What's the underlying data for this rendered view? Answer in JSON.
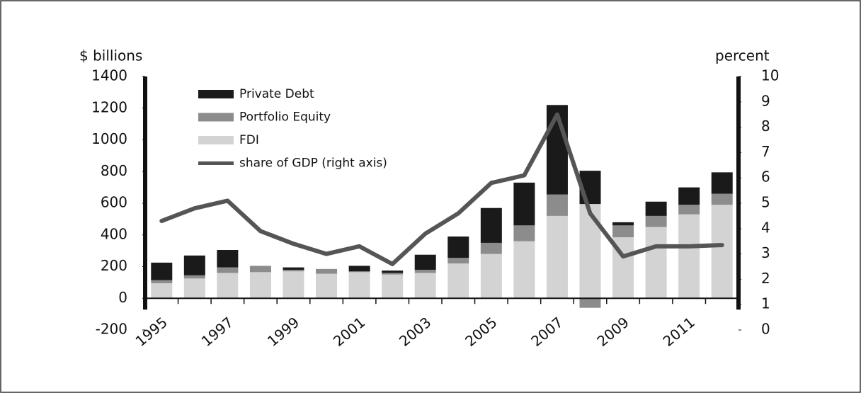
{
  "chart_data": {
    "type": "bar",
    "stacked": true,
    "ylabel": "$ billions",
    "y2label": "percent",
    "categories": [
      "1995",
      null,
      "1997",
      null,
      "1999",
      null,
      "2001",
      null,
      "2003",
      null,
      "2005",
      null,
      "2007",
      null,
      "2009",
      null,
      "2011",
      null
    ],
    "series": [
      {
        "name": "Private Debt",
        "color": "#1a1a1a",
        "values": [
          110,
          125,
          110,
          0,
          15,
          0,
          35,
          15,
          95,
          135,
          220,
          270,
          565,
          210,
          20,
          90,
          110,
          135
        ]
      },
      {
        "name": "Portfolio Equity",
        "color": "#8c8c8c",
        "values": [
          20,
          20,
          35,
          40,
          10,
          30,
          5,
          10,
          20,
          35,
          70,
          100,
          135,
          -60,
          75,
          70,
          60,
          70
        ]
      },
      {
        "name": "FDI",
        "color": "#d3d3d3",
        "values": [
          95,
          125,
          160,
          165,
          170,
          155,
          165,
          150,
          160,
          220,
          280,
          360,
          520,
          595,
          385,
          450,
          530,
          590
        ]
      },
      {
        "name": "share of GDP (right axis)",
        "type": "line",
        "axis": "y2",
        "color": "#555555",
        "values": [
          4.3,
          4.8,
          5.1,
          3.9,
          3.4,
          3.0,
          3.3,
          2.6,
          3.8,
          4.6,
          5.8,
          6.1,
          8.5,
          4.6,
          2.9,
          3.3,
          3.3,
          3.35
        ]
      }
    ],
    "ylim": [
      -200,
      1400
    ],
    "yticks": [
      -200,
      0,
      200,
      400,
      600,
      800,
      1000,
      1200,
      1400
    ],
    "y2lim": [
      0,
      10
    ],
    "y2ticks": [
      0,
      1,
      2,
      3,
      4,
      5,
      6,
      7,
      8,
      9,
      10
    ],
    "legend": "upper left"
  }
}
